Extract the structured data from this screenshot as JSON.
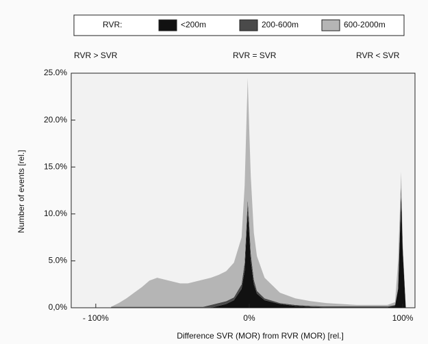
{
  "chart_data": {
    "type": "stacked-area",
    "legend_title": "RVR:",
    "annotations": [
      "RVR > SVR",
      "RVR = SVR",
      "RVR < SVR"
    ],
    "x_label": "Difference SVR (MOR) from RVR (MOR) [rel.]",
    "y_label": "Number of events [rel.]",
    "x": [
      -90,
      -85,
      -80,
      -75,
      -70,
      -65,
      -60,
      -55,
      -50,
      -45,
      -40,
      -35,
      -30,
      -25,
      -20,
      -15,
      -10,
      -5,
      -3,
      -1,
      0,
      1,
      3,
      5,
      10,
      20,
      30,
      40,
      50,
      60,
      70,
      80,
      90,
      95,
      97,
      99,
      100,
      102
    ],
    "series": [
      {
        "name": "<200m",
        "color": "#111111",
        "values": [
          0,
          0,
          0,
          0,
          0,
          0,
          0,
          0,
          0,
          0,
          0,
          0,
          0,
          0,
          0.2,
          0.4,
          0.8,
          2,
          4,
          10.5,
          8,
          5,
          2.5,
          1.5,
          0.8,
          0.4,
          0.2,
          0.1,
          0.05,
          0.05,
          0.05,
          0.05,
          0.05,
          0.2,
          2,
          12,
          6,
          0
        ]
      },
      {
        "name": "200-600m",
        "color": "#4a4a4a",
        "values": [
          0.1,
          0.1,
          0.1,
          0.1,
          0.1,
          0.1,
          0.1,
          0.1,
          0.1,
          0.1,
          0.1,
          0.1,
          0.1,
          0.3,
          0.3,
          0.3,
          0.3,
          0.5,
          0.8,
          1,
          1,
          0.8,
          0.5,
          0.3,
          0.2,
          0.1,
          0.1,
          0.1,
          0.1,
          0.1,
          0.1,
          0.1,
          0.1,
          0.1,
          0.1,
          1,
          0.5,
          0
        ]
      },
      {
        "name": "600-2000m",
        "color": "#b5b5b5",
        "values": [
          0,
          0.4,
          0.9,
          1.5,
          2.1,
          2.8,
          3.1,
          2.9,
          2.7,
          2.5,
          2.5,
          2.7,
          2.9,
          2.9,
          3.0,
          3.2,
          3.7,
          5,
          8.2,
          13,
          10,
          8.2,
          5,
          3.7,
          2.2,
          1.1,
          0.7,
          0.5,
          0.35,
          0.25,
          0.15,
          0.15,
          0.15,
          0.3,
          2.9,
          1.5,
          0.5,
          0
        ]
      }
    ],
    "xlim": [
      -116,
      108
    ],
    "ylim": [
      0,
      25
    ],
    "xticks": [
      {
        "value": -100,
        "label": "- 100%"
      },
      {
        "value": 0,
        "label": "0%"
      },
      {
        "value": 100,
        "label": "100%"
      }
    ],
    "yticks": [
      {
        "value": 0,
        "label": "0,0%"
      },
      {
        "value": 5,
        "label": "5.0%"
      },
      {
        "value": 10,
        "label": "10.0%"
      },
      {
        "value": 15,
        "label": "15.0%"
      },
      {
        "value": 20,
        "label": "20.0%"
      },
      {
        "value": 25,
        "label": "25.0%"
      }
    ]
  }
}
